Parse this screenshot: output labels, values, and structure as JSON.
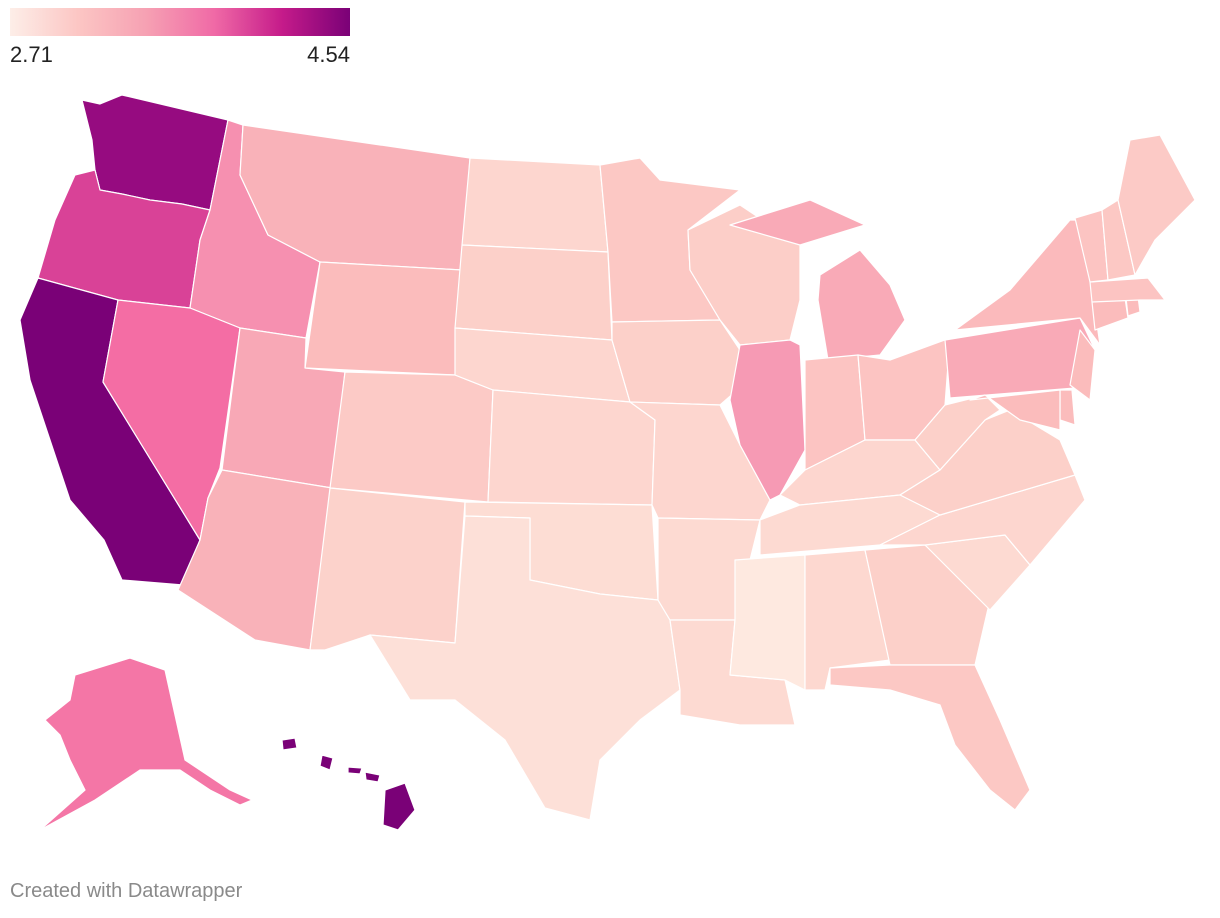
{
  "legend": {
    "min_label": "2.71",
    "max_label": "4.54",
    "gradient": [
      "#fdeee8",
      "#fcc6c4",
      "#f6a1b3",
      "#f06aa6",
      "#c51b8a",
      "#7a0177"
    ]
  },
  "regions": [
    {
      "name": "Washington",
      "color": "#960b80"
    },
    {
      "name": "Oregon",
      "color": "#d94297"
    },
    {
      "name": "California",
      "color": "#7a0177"
    },
    {
      "name": "Idaho",
      "color": "#f690b0"
    },
    {
      "name": "Nevada",
      "color": "#f46da4"
    },
    {
      "name": "Montana",
      "color": "#f9b2b9"
    },
    {
      "name": "Wyoming",
      "color": "#fbbcbc"
    },
    {
      "name": "Utah",
      "color": "#f8a8b6"
    },
    {
      "name": "Arizona",
      "color": "#f9b2b9"
    },
    {
      "name": "Colorado",
      "color": "#fccac6"
    },
    {
      "name": "New Mexico",
      "color": "#fcd2cb"
    },
    {
      "name": "North Dakota",
      "color": "#fdd6cf"
    },
    {
      "name": "South Dakota",
      "color": "#fcd0c9"
    },
    {
      "name": "Nebraska",
      "color": "#fdd6cf"
    },
    {
      "name": "Kansas",
      "color": "#fdd6cf"
    },
    {
      "name": "Oklahoma",
      "color": "#fdddd4"
    },
    {
      "name": "Texas",
      "color": "#fde0d8"
    },
    {
      "name": "Minnesota",
      "color": "#fcc8c4"
    },
    {
      "name": "Iowa",
      "color": "#fcd0c9"
    },
    {
      "name": "Missouri",
      "color": "#fdd6cf"
    },
    {
      "name": "Arkansas",
      "color": "#fddad2"
    },
    {
      "name": "Louisiana",
      "color": "#fddad2"
    },
    {
      "name": "Wisconsin",
      "color": "#fccec8"
    },
    {
      "name": "Illinois",
      "color": "#f69ab4"
    },
    {
      "name": "Michigan",
      "color": "#f9aab7"
    },
    {
      "name": "Indiana",
      "color": "#fcc4c2"
    },
    {
      "name": "Ohio",
      "color": "#fcc4c2"
    },
    {
      "name": "Kentucky",
      "color": "#fdd6cf"
    },
    {
      "name": "Tennessee",
      "color": "#fddad2"
    },
    {
      "name": "Mississippi",
      "color": "#fee9e0"
    },
    {
      "name": "Alabama",
      "color": "#fdd8d0"
    },
    {
      "name": "Georgia",
      "color": "#fcd0c9"
    },
    {
      "name": "Florida",
      "color": "#fcc8c4"
    },
    {
      "name": "South Carolina",
      "color": "#fddad2"
    },
    {
      "name": "North Carolina",
      "color": "#fdd6cf"
    },
    {
      "name": "Virginia",
      "color": "#fcd0c9"
    },
    {
      "name": "West Virginia",
      "color": "#fcd0c9"
    },
    {
      "name": "Pennsylvania",
      "color": "#f9aab7"
    },
    {
      "name": "New York",
      "color": "#fbbabc"
    },
    {
      "name": "New Jersey",
      "color": "#fbbcbc"
    },
    {
      "name": "Delaware",
      "color": "#fbbcbc"
    },
    {
      "name": "Maryland",
      "color": "#fbbcbc"
    },
    {
      "name": "Connecticut",
      "color": "#fbbcbc"
    },
    {
      "name": "Rhode Island",
      "color": "#fbbcbc"
    },
    {
      "name": "Massachusetts",
      "color": "#fcc4c2"
    },
    {
      "name": "Vermont",
      "color": "#fcc4c2"
    },
    {
      "name": "New Hampshire",
      "color": "#fcc8c4"
    },
    {
      "name": "Maine",
      "color": "#fccac6"
    },
    {
      "name": "Alaska",
      "color": "#f476a6"
    },
    {
      "name": "Hawaii",
      "color": "#7a0177"
    }
  ],
  "credit": "Created with Datawrapper"
}
